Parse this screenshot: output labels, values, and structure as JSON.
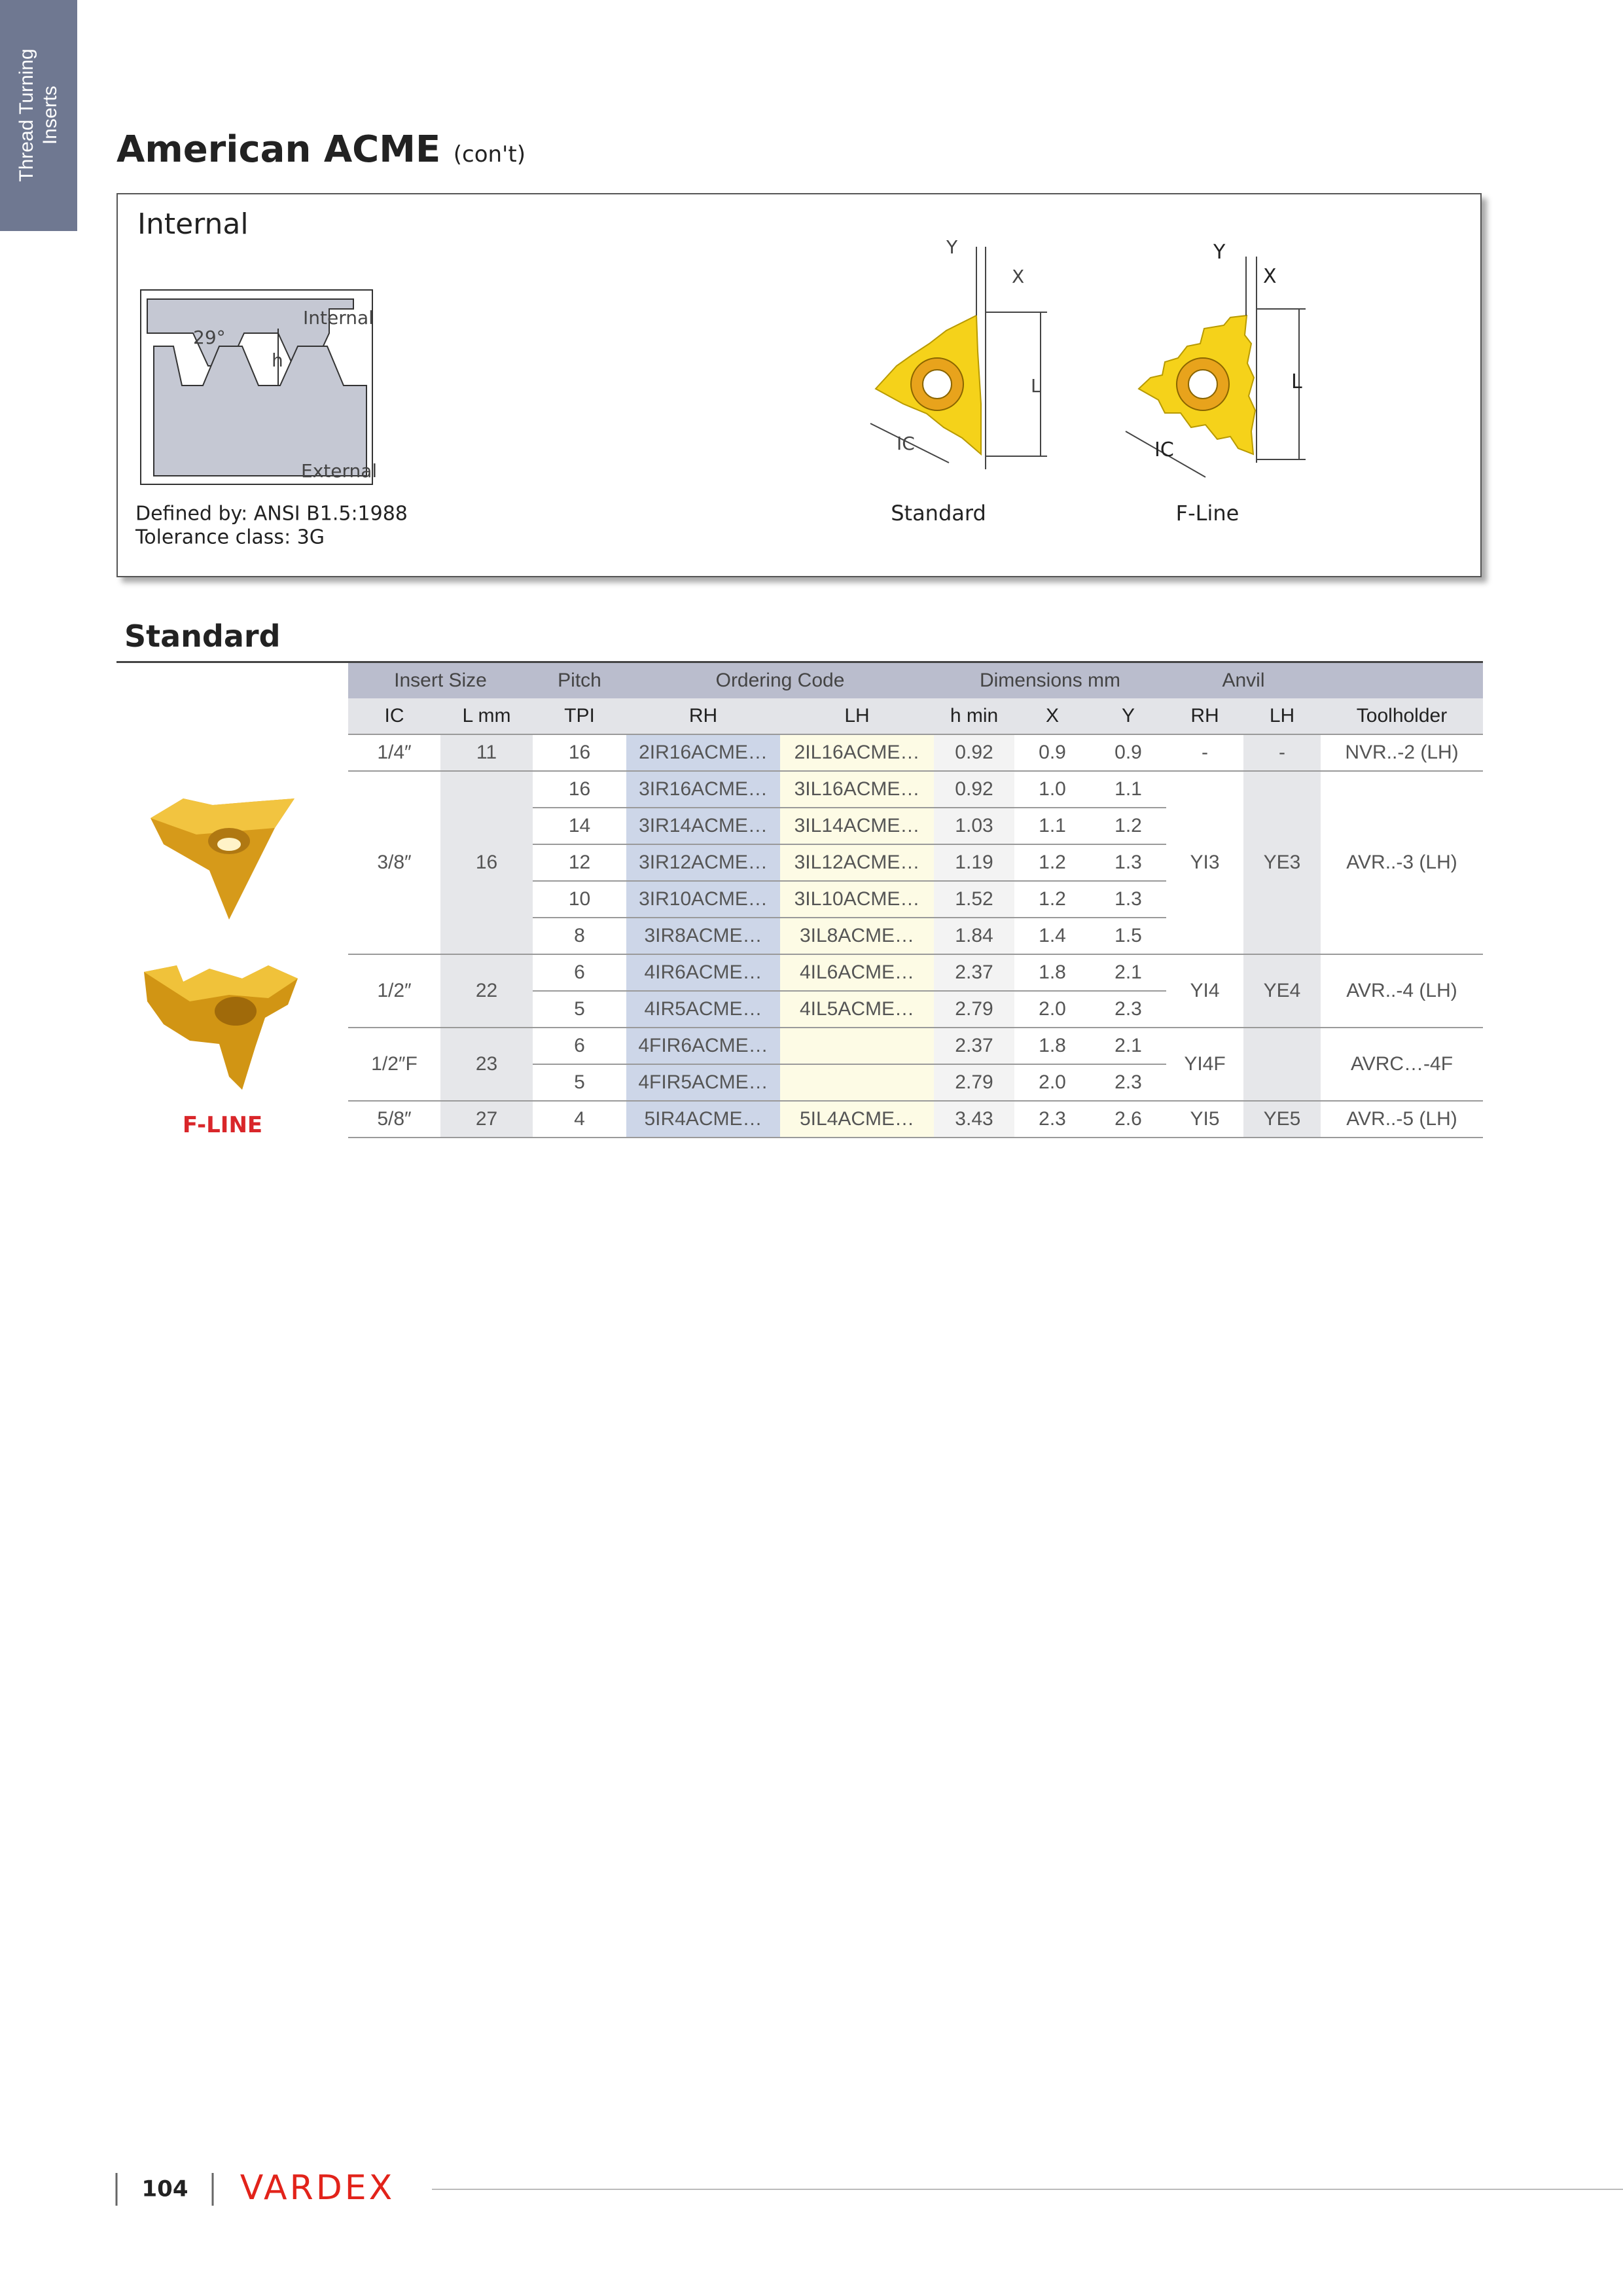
{
  "side_tab": {
    "lines": [
      "Thread Turning",
      "Inserts"
    ]
  },
  "header": {
    "title": "American ACME",
    "suffix": "(con't)"
  },
  "info_box": {
    "heading": "Internal",
    "thread_diagram": {
      "angle": "29°",
      "internal": "Internal",
      "h": "h",
      "external": "External"
    },
    "defined_by": "Defined by: ANSI B1.5:1988",
    "tolerance": "Tolerance class: 3G",
    "inserts": [
      {
        "caption": "Standard",
        "y": "Y",
        "x": "X",
        "l": "L",
        "ic": "IC"
      },
      {
        "caption": "F-Line",
        "y": "Y",
        "x": "X",
        "l": "L",
        "ic": "IC"
      }
    ]
  },
  "section": {
    "title": "Standard",
    "fline_label": "F-LINE"
  },
  "table": {
    "group_headers": [
      "Insert Size",
      "Pitch",
      "Ordering Code",
      "Dimensions mm",
      "Anvil"
    ],
    "headers": [
      "IC",
      "L mm",
      "TPI",
      "RH",
      "LH",
      "h min",
      "X",
      "Y",
      "RH",
      "LH",
      "Toolholder"
    ],
    "groups": [
      {
        "ic": "1/4″",
        "l": "11",
        "anvil_rh": "-",
        "anvil_lh": "-",
        "toolholder": "NVR..-2 (LH)",
        "rows": [
          {
            "tpi": "16",
            "rh": "2IR16ACME…",
            "lh": "2IL16ACME…",
            "h_min": "0.92",
            "x": "0.9",
            "y": "0.9"
          }
        ]
      },
      {
        "ic": "3/8″",
        "l": "16",
        "anvil_rh": "YI3",
        "anvil_lh": "YE3",
        "toolholder": "AVR..-3 (LH)",
        "rows": [
          {
            "tpi": "16",
            "rh": "3IR16ACME…",
            "lh": "3IL16ACME…",
            "h_min": "0.92",
            "x": "1.0",
            "y": "1.1"
          },
          {
            "tpi": "14",
            "rh": "3IR14ACME…",
            "lh": "3IL14ACME…",
            "h_min": "1.03",
            "x": "1.1",
            "y": "1.2"
          },
          {
            "tpi": "12",
            "rh": "3IR12ACME…",
            "lh": "3IL12ACME…",
            "h_min": "1.19",
            "x": "1.2",
            "y": "1.3"
          },
          {
            "tpi": "10",
            "rh": "3IR10ACME…",
            "lh": "3IL10ACME…",
            "h_min": "1.52",
            "x": "1.2",
            "y": "1.3"
          },
          {
            "tpi": "8",
            "rh": "3IR8ACME…",
            "lh": "3IL8ACME…",
            "h_min": "1.84",
            "x": "1.4",
            "y": "1.5"
          }
        ]
      },
      {
        "ic": "1/2″",
        "l": "22",
        "anvil_rh": "YI4",
        "anvil_lh": "YE4",
        "toolholder": "AVR..-4 (LH)",
        "rows": [
          {
            "tpi": "6",
            "rh": "4IR6ACME…",
            "lh": "4IL6ACME…",
            "h_min": "2.37",
            "x": "1.8",
            "y": "2.1"
          },
          {
            "tpi": "5",
            "rh": "4IR5ACME…",
            "lh": "4IL5ACME…",
            "h_min": "2.79",
            "x": "2.0",
            "y": "2.3"
          }
        ]
      },
      {
        "ic": "1/2″F",
        "l": "23",
        "anvil_rh": "YI4F",
        "toolholder": "AVRC…-4F",
        "rows": [
          {
            "tpi": "6",
            "rh": "4FIR6ACME…",
            "h_min": "2.37",
            "x": "1.8",
            "y": "2.1"
          },
          {
            "tpi": "5",
            "rh": "4FIR5ACME…",
            "h_min": "2.79",
            "x": "2.0",
            "y": "2.3"
          }
        ]
      },
      {
        "ic": "5/8″",
        "l": "27",
        "anvil_rh": "YI5",
        "anvil_lh": "YE5",
        "toolholder": "AVR..-5 (LH)",
        "rows": [
          {
            "tpi": "4",
            "rh": "5IR4ACME…",
            "lh": "5IL4ACME…",
            "h_min": "3.43",
            "x": "2.3",
            "y": "2.6"
          }
        ]
      }
    ]
  },
  "footer": {
    "page": "104",
    "brand": "VARDEX"
  }
}
